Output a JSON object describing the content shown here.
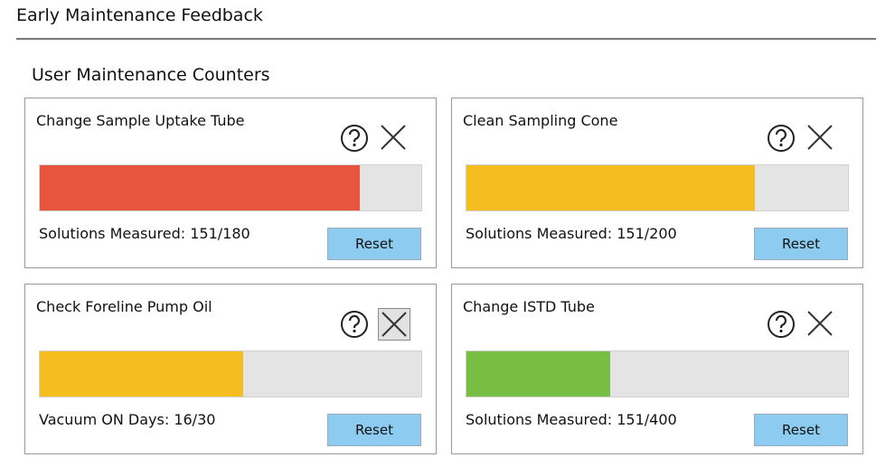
{
  "header": {
    "title": "Early Maintenance Feedback"
  },
  "section": {
    "title": "User Maintenance Counters"
  },
  "counters": [
    {
      "title": "Change Sample Uptake Tube",
      "status": "Solutions Measured: 151/180",
      "count": 151,
      "limit": 180,
      "color": "#e8553f",
      "button": "Reset"
    },
    {
      "title": "Clean Sampling Cone",
      "status": "Solutions Measured: 151/200",
      "count": 151,
      "limit": 200,
      "color": "#f5bd1f",
      "button": "Reset"
    },
    {
      "title": "Check Foreline Pump Oil",
      "status": "Vacuum ON Days: 16/30",
      "count": 16,
      "limit": 30,
      "color": "#f5bd1f",
      "button": "Reset"
    },
    {
      "title": "Change ISTD Tube",
      "status": "Solutions Measured: 151/400",
      "count": 151,
      "limit": 400,
      "color": "#78be43",
      "button": "Reset"
    }
  ]
}
